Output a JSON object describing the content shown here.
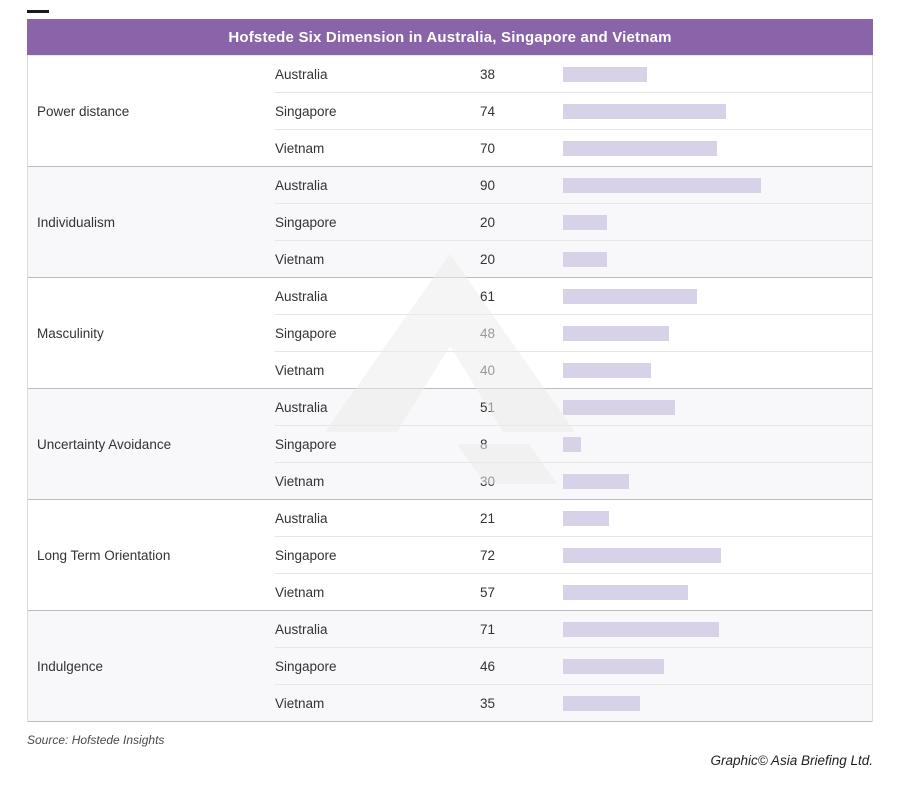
{
  "title": "Hofstede Six Dimension in Australia, Singapore and Vietnam",
  "footer": {
    "source": "Source: Hofstede Insights",
    "credit": "Graphic© Asia Briefing Ltd."
  },
  "colors": {
    "header_bg": "#8a64a8",
    "bar_fill": "#d8d2e9",
    "group_alt_bg": "#f8f7f9"
  },
  "chart_data": {
    "type": "bar",
    "orientation": "horizontal",
    "title": "Hofstede Six Dimension in Australia, Singapore and Vietnam",
    "categories": [
      "Power distance",
      "Individualism",
      "Masculinity",
      "Uncertainty Avoidance",
      "Long Term Orientation",
      "Indulgence"
    ],
    "series": [
      {
        "name": "Australia",
        "values": [
          38,
          90,
          61,
          51,
          21,
          71
        ]
      },
      {
        "name": "Singapore",
        "values": [
          74,
          20,
          48,
          8,
          72,
          46
        ]
      },
      {
        "name": "Vietnam",
        "values": [
          70,
          20,
          40,
          30,
          57,
          35
        ]
      }
    ],
    "xlim": [
      0,
      100
    ],
    "value_labels": true,
    "legend": "none",
    "grid": false
  }
}
